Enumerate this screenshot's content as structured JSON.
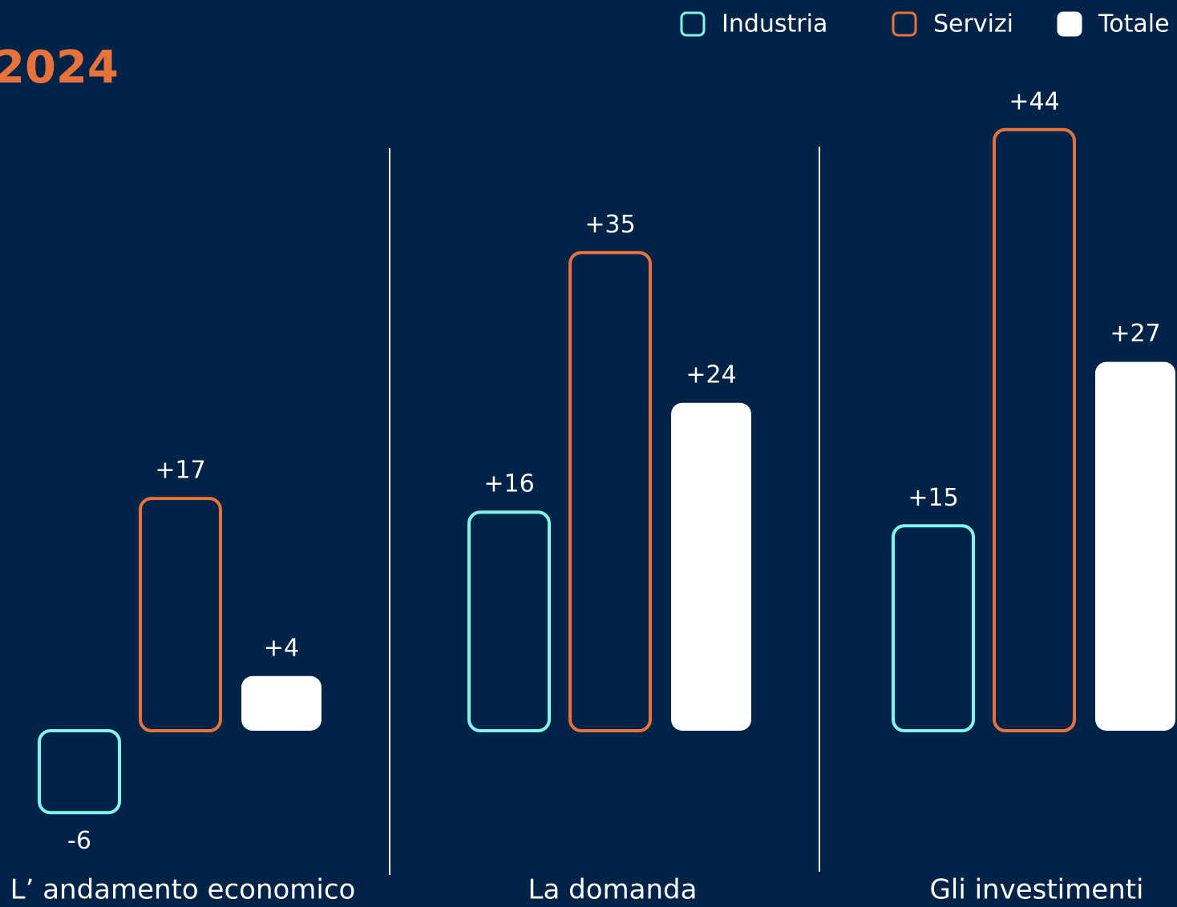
{
  "chart_data": {
    "type": "bar",
    "title": "2024",
    "categories": [
      "L’ andamento economico",
      "La domanda",
      "Gli investimenti"
    ],
    "series": [
      {
        "name": "Industria",
        "color": "#7ff5ee",
        "filled": false,
        "values": [
          -6,
          16,
          15
        ],
        "value_labels": [
          "-6",
          "+16",
          "+15"
        ]
      },
      {
        "name": "Servizi",
        "color": "#e8733a",
        "filled": false,
        "values": [
          17,
          35,
          44
        ],
        "value_labels": [
          "+17",
          "+35",
          "+44"
        ]
      },
      {
        "name": "Totale",
        "color": "#ffffff",
        "filled": true,
        "values": [
          4,
          24,
          27
        ],
        "value_labels": [
          "+4",
          "+24",
          "+27"
        ]
      }
    ]
  }
}
